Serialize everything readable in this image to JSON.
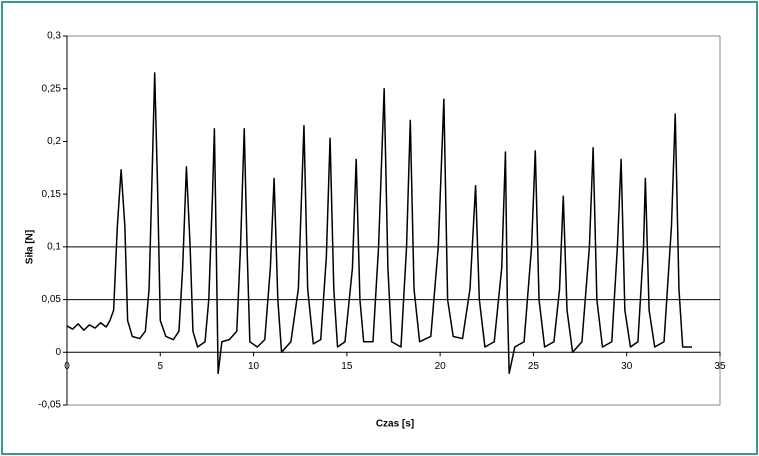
{
  "chart_data": {
    "type": "line",
    "x_label": "Czas [s]",
    "y_label": "Siła [N]",
    "color": "#000000",
    "xlim": [
      0,
      35
    ],
    "xticks": [
      0,
      5,
      10,
      15,
      20,
      25,
      30,
      35
    ],
    "ylim": [
      -0.05,
      0.3
    ],
    "yticks": [
      {
        "value": -0.05,
        "label": "-0,05"
      },
      0,
      {
        "value": 0.05,
        "label": "0,05"
      },
      {
        "value": 0.1,
        "label": "0,1"
      },
      {
        "value": 0.15,
        "label": "0,15"
      },
      {
        "value": 0.2,
        "label": "0,2"
      },
      {
        "value": 0.25,
        "label": "0,25"
      },
      {
        "value": 0.3,
        "label": "0,3"
      }
    ],
    "gridlines": [
      0.05,
      0.1
    ],
    "x": [
      0,
      0.3,
      0.6,
      0.9,
      1.2,
      1.5,
      1.8,
      2.1,
      2.3,
      2.5,
      2.7,
      2.9,
      3.1,
      3.25,
      3.5,
      3.9,
      4.2,
      4.4,
      4.55,
      4.7,
      4.85,
      5.0,
      5.3,
      5.7,
      6.0,
      6.2,
      6.4,
      6.6,
      6.75,
      7.0,
      7.4,
      7.6,
      7.8,
      7.9,
      8.0,
      8.1,
      8.3,
      8.7,
      9.1,
      9.3,
      9.5,
      9.65,
      9.8,
      10.2,
      10.6,
      10.9,
      11.1,
      11.3,
      11.5,
      12.0,
      12.4,
      12.7,
      12.9,
      13.2,
      13.6,
      13.9,
      14.1,
      14.3,
      14.5,
      14.9,
      15.3,
      15.5,
      15.7,
      15.9,
      16.4,
      16.7,
      17.0,
      17.2,
      17.4,
      17.9,
      18.2,
      18.4,
      18.6,
      18.9,
      19.5,
      19.9,
      20.2,
      20.4,
      20.7,
      21.2,
      21.6,
      21.9,
      22.1,
      22.4,
      22.9,
      23.3,
      23.5,
      23.6,
      23.7,
      24.0,
      24.5,
      24.9,
      25.1,
      25.3,
      25.6,
      26.1,
      26.4,
      26.6,
      26.8,
      27.1,
      27.6,
      28.0,
      28.2,
      28.4,
      28.7,
      29.2,
      29.5,
      29.7,
      29.9,
      30.2,
      30.6,
      30.9,
      31.0,
      31.2,
      31.5,
      32.0,
      32.4,
      32.6,
      32.8,
      33.0,
      33.5
    ],
    "values": [
      0.025,
      0.022,
      0.027,
      0.021,
      0.026,
      0.023,
      0.028,
      0.024,
      0.03,
      0.04,
      0.12,
      0.173,
      0.12,
      0.03,
      0.015,
      0.013,
      0.02,
      0.06,
      0.16,
      0.265,
      0.16,
      0.03,
      0.015,
      0.012,
      0.02,
      0.08,
      0.176,
      0.1,
      0.02,
      0.005,
      0.01,
      0.05,
      0.15,
      0.212,
      0.1,
      -0.02,
      0.01,
      0.012,
      0.02,
      0.1,
      0.212,
      0.1,
      0.01,
      0.005,
      0.012,
      0.08,
      0.165,
      0.05,
      0.0,
      0.01,
      0.06,
      0.215,
      0.06,
      0.008,
      0.012,
      0.09,
      0.203,
      0.06,
      0.005,
      0.01,
      0.08,
      0.183,
      0.05,
      0.01,
      0.01,
      0.1,
      0.25,
      0.08,
      0.01,
      0.005,
      0.1,
      0.22,
      0.06,
      0.01,
      0.015,
      0.1,
      0.24,
      0.05,
      0.015,
      0.013,
      0.06,
      0.158,
      0.05,
      0.005,
      0.01,
      0.08,
      0.19,
      0.05,
      -0.02,
      0.005,
      0.01,
      0.1,
      0.191,
      0.05,
      0.005,
      0.01,
      0.06,
      0.148,
      0.04,
      0.0,
      0.01,
      0.1,
      0.194,
      0.05,
      0.005,
      0.01,
      0.1,
      0.183,
      0.04,
      0.005,
      0.01,
      0.1,
      0.165,
      0.04,
      0.005,
      0.01,
      0.12,
      0.226,
      0.06,
      0.005,
      0.005
    ]
  }
}
